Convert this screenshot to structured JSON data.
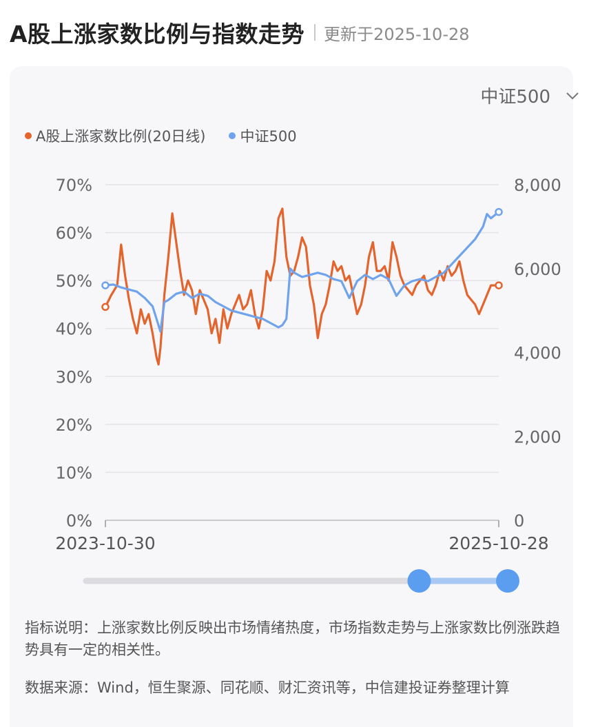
{
  "header": {
    "title": "A股上涨家数比例与指数走势",
    "update": "更新于2025-10-28"
  },
  "index_selector": {
    "selected": "中证500",
    "icon": "chevron-down-icon"
  },
  "legend": [
    {
      "name": "A股上涨家数比例(20日线)",
      "color": "#e4642e"
    },
    {
      "name": "中证500",
      "color": "#6fa3ec"
    }
  ],
  "notes": {
    "description": "指标说明：上涨家数比例反映出市场情绪热度，市场指数走势与上涨家数比例涨跌趋势具有一定的相关性。",
    "source": "数据来源：Wind，恒生聚源、同花顺、财汇资讯等，中信建投证券整理计算"
  },
  "range_slider": {
    "start_fraction": 0.79,
    "end_fraction": 1.0
  },
  "chart_data": {
    "type": "line",
    "x_start": "2023-10-30",
    "x_end": "2025-10-28",
    "x_tick_labels": [
      "2023-10-30",
      "2025-10-28"
    ],
    "left_axis": {
      "ticks": [
        "0%",
        "10%",
        "20%",
        "30%",
        "40%",
        "50%",
        "60%",
        "70%"
      ],
      "ylim": [
        0,
        70
      ]
    },
    "right_axis": {
      "ticks": [
        "0",
        "2,000",
        "4,000",
        "6,000",
        "8,000"
      ],
      "ylim": [
        0,
        8000
      ]
    },
    "grid": true,
    "series": [
      {
        "name": "A股上涨家数比例(20日线)",
        "axis": "left",
        "color": "#e4642e",
        "x": [
          0,
          0.015,
          0.03,
          0.04,
          0.05,
          0.06,
          0.07,
          0.08,
          0.09,
          0.1,
          0.11,
          0.12,
          0.13,
          0.135,
          0.14,
          0.15,
          0.16,
          0.17,
          0.18,
          0.19,
          0.2,
          0.21,
          0.22,
          0.23,
          0.24,
          0.25,
          0.26,
          0.27,
          0.28,
          0.29,
          0.3,
          0.31,
          0.32,
          0.33,
          0.34,
          0.35,
          0.36,
          0.37,
          0.38,
          0.39,
          0.4,
          0.41,
          0.42,
          0.43,
          0.44,
          0.45,
          0.46,
          0.47,
          0.48,
          0.49,
          0.5,
          0.51,
          0.52,
          0.53,
          0.54,
          0.55,
          0.56,
          0.57,
          0.58,
          0.59,
          0.6,
          0.61,
          0.62,
          0.63,
          0.64,
          0.65,
          0.66,
          0.67,
          0.68,
          0.69,
          0.7,
          0.71,
          0.72,
          0.73,
          0.74,
          0.75,
          0.76,
          0.77,
          0.78,
          0.79,
          0.8,
          0.81,
          0.82,
          0.83,
          0.84,
          0.85,
          0.86,
          0.87,
          0.88,
          0.89,
          0.9,
          0.91,
          0.92,
          0.93,
          0.94,
          0.95,
          0.96,
          0.97,
          0.98,
          1.0
        ],
        "values": [
          44.5,
          47,
          49,
          57.5,
          51,
          46,
          42,
          39,
          44,
          41,
          43,
          39,
          34,
          32.5,
          36,
          47,
          55,
          64,
          58,
          52,
          47,
          50,
          48,
          43,
          48,
          46,
          44,
          39,
          42,
          37,
          44,
          40,
          43,
          45,
          47,
          44,
          45,
          48,
          43,
          40,
          44,
          52,
          50,
          54,
          63,
          65,
          55,
          51,
          52,
          55,
          59,
          57,
          49,
          45,
          38,
          43,
          45,
          49,
          54,
          52,
          53,
          50,
          51,
          47,
          43,
          45,
          49,
          55,
          58,
          52,
          52,
          53,
          50,
          58,
          55,
          51,
          49,
          48,
          47,
          49,
          50,
          51,
          48,
          47,
          49,
          52,
          50,
          53,
          51,
          52,
          54,
          50,
          47,
          46,
          45,
          43,
          45,
          47,
          49,
          49
        ]
      },
      {
        "name": "中证500",
        "axis": "right",
        "color": "#6fa3ec",
        "x": [
          0,
          0.02,
          0.04,
          0.06,
          0.08,
          0.1,
          0.12,
          0.13,
          0.14,
          0.15,
          0.16,
          0.18,
          0.2,
          0.22,
          0.24,
          0.26,
          0.28,
          0.3,
          0.32,
          0.34,
          0.36,
          0.38,
          0.4,
          0.42,
          0.44,
          0.45,
          0.46,
          0.47,
          0.48,
          0.5,
          0.52,
          0.54,
          0.56,
          0.58,
          0.6,
          0.62,
          0.64,
          0.66,
          0.68,
          0.7,
          0.72,
          0.74,
          0.76,
          0.78,
          0.8,
          0.82,
          0.84,
          0.86,
          0.88,
          0.9,
          0.92,
          0.94,
          0.96,
          0.97,
          0.98,
          1.0
        ],
        "values": [
          5600,
          5620,
          5550,
          5500,
          5450,
          5300,
          5100,
          4800,
          4500,
          5200,
          5250,
          5400,
          5450,
          5300,
          5400,
          5350,
          5200,
          5100,
          5000,
          4950,
          4900,
          4850,
          4800,
          4700,
          4600,
          4650,
          4800,
          6000,
          5900,
          5800,
          5850,
          5900,
          5850,
          5750,
          5700,
          5300,
          5700,
          5850,
          5750,
          5850,
          5750,
          5350,
          5600,
          5700,
          5750,
          5700,
          5800,
          5900,
          6100,
          6300,
          6500,
          6700,
          7000,
          7300,
          7200,
          7350
        ]
      }
    ]
  }
}
